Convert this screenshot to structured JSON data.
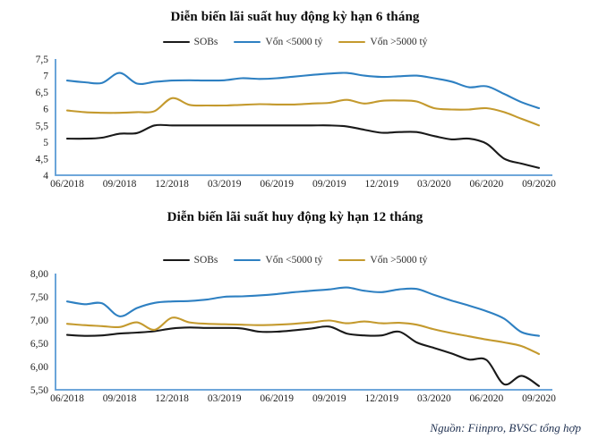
{
  "page": {
    "source_note": "Nguồn: Fiinpro, BVSC tổng hợp"
  },
  "colors": {
    "axis": "#5b9bd5",
    "title": "#0a0a0a",
    "tick": "#1f1f1f",
    "footer": "#1f3050",
    "sobs": "#1a1a1a",
    "von_under_5000": "#2e80c2",
    "von_over_5000": "#c49a2e"
  },
  "chart_data": [
    {
      "type": "line",
      "title": "Diễn biến lãi suất huy động kỳ hạn 6 tháng",
      "legend_position": "top",
      "grid": false,
      "x_frequency": "monthly 06/2018 - 09/2020",
      "x_tick_labels": [
        "06/2018",
        "09/2018",
        "12/2018",
        "03/2019",
        "06/2019",
        "09/2019",
        "12/2019",
        "03/2020",
        "06/2020",
        "09/2020"
      ],
      "y_tick_labels": [
        "7,5",
        "7",
        "6,5",
        "6",
        "5,5",
        "5",
        "4,5",
        "4"
      ],
      "ylim": [
        4,
        7.5
      ],
      "series": [
        {
          "key": "sobs",
          "name": "SOBs",
          "color": "#1a1a1a",
          "values": [
            5.1,
            5.1,
            5.13,
            5.25,
            5.27,
            5.5,
            5.5,
            5.5,
            5.5,
            5.5,
            5.5,
            5.5,
            5.5,
            5.5,
            5.5,
            5.5,
            5.47,
            5.37,
            5.28,
            5.3,
            5.3,
            5.18,
            5.08,
            5.1,
            4.95,
            4.5,
            4.35,
            4.22
          ]
        },
        {
          "key": "von-duoi-5000-ty",
          "name": "Vốn <5000 tỷ",
          "color": "#2e80c2",
          "values": [
            6.85,
            6.8,
            6.78,
            7.08,
            6.76,
            6.81,
            6.85,
            6.86,
            6.85,
            6.86,
            6.92,
            6.9,
            6.92,
            6.97,
            7.02,
            7.06,
            7.08,
            7.0,
            6.96,
            6.98,
            7.0,
            6.92,
            6.82,
            6.65,
            6.68,
            6.45,
            6.2,
            6.02
          ]
        },
        {
          "key": "von-tren-5000-ty",
          "name": "Vốn >5000 tỷ",
          "color": "#c49a2e",
          "values": [
            5.95,
            5.9,
            5.88,
            5.88,
            5.9,
            5.93,
            6.32,
            6.12,
            6.1,
            6.1,
            6.12,
            6.14,
            6.13,
            6.13,
            6.16,
            6.18,
            6.27,
            6.16,
            6.24,
            6.25,
            6.22,
            6.02,
            5.98,
            5.98,
            6.02,
            5.9,
            5.7,
            5.5
          ]
        }
      ]
    },
    {
      "type": "line",
      "title": "Diễn biến lãi suất huy động kỳ hạn 12 tháng",
      "legend_position": "top",
      "grid": false,
      "x_frequency": "monthly 06/2018 - 09/2020",
      "x_tick_labels": [
        "06/2018",
        "09/2018",
        "12/2018",
        "03/2019",
        "06/2019",
        "09/2019",
        "12/2019",
        "03/2020",
        "06/2020",
        "09/2020"
      ],
      "y_tick_labels": [
        "8,00",
        "7,50",
        "7,00",
        "6,50",
        "6,00",
        "5,50"
      ],
      "ylim": [
        5.5,
        8
      ],
      "series": [
        {
          "key": "sobs",
          "name": "SOBs",
          "color": "#1a1a1a",
          "values": [
            6.68,
            6.66,
            6.67,
            6.71,
            6.73,
            6.76,
            6.82,
            6.84,
            6.83,
            6.83,
            6.82,
            6.75,
            6.75,
            6.78,
            6.82,
            6.86,
            6.71,
            6.67,
            6.67,
            6.75,
            6.52,
            6.4,
            6.28,
            6.15,
            6.14,
            5.62,
            5.8,
            5.58
          ]
        },
        {
          "key": "von-duoi-5000-ty",
          "name": "Vốn <5000 tỷ",
          "color": "#2e80c2",
          "values": [
            7.4,
            7.34,
            7.36,
            7.08,
            7.26,
            7.37,
            7.4,
            7.41,
            7.44,
            7.5,
            7.51,
            7.53,
            7.56,
            7.6,
            7.63,
            7.66,
            7.7,
            7.63,
            7.6,
            7.66,
            7.67,
            7.54,
            7.42,
            7.31,
            7.19,
            7.03,
            6.74,
            6.66
          ]
        },
        {
          "key": "von-tren-5000-ty",
          "name": "Vốn >5000 tỷ",
          "color": "#c49a2e",
          "values": [
            6.92,
            6.89,
            6.87,
            6.85,
            6.95,
            6.79,
            7.05,
            6.95,
            6.92,
            6.91,
            6.9,
            6.89,
            6.9,
            6.92,
            6.95,
            6.99,
            6.93,
            6.97,
            6.93,
            6.94,
            6.9,
            6.8,
            6.72,
            6.65,
            6.58,
            6.52,
            6.44,
            6.27
          ]
        }
      ]
    }
  ]
}
